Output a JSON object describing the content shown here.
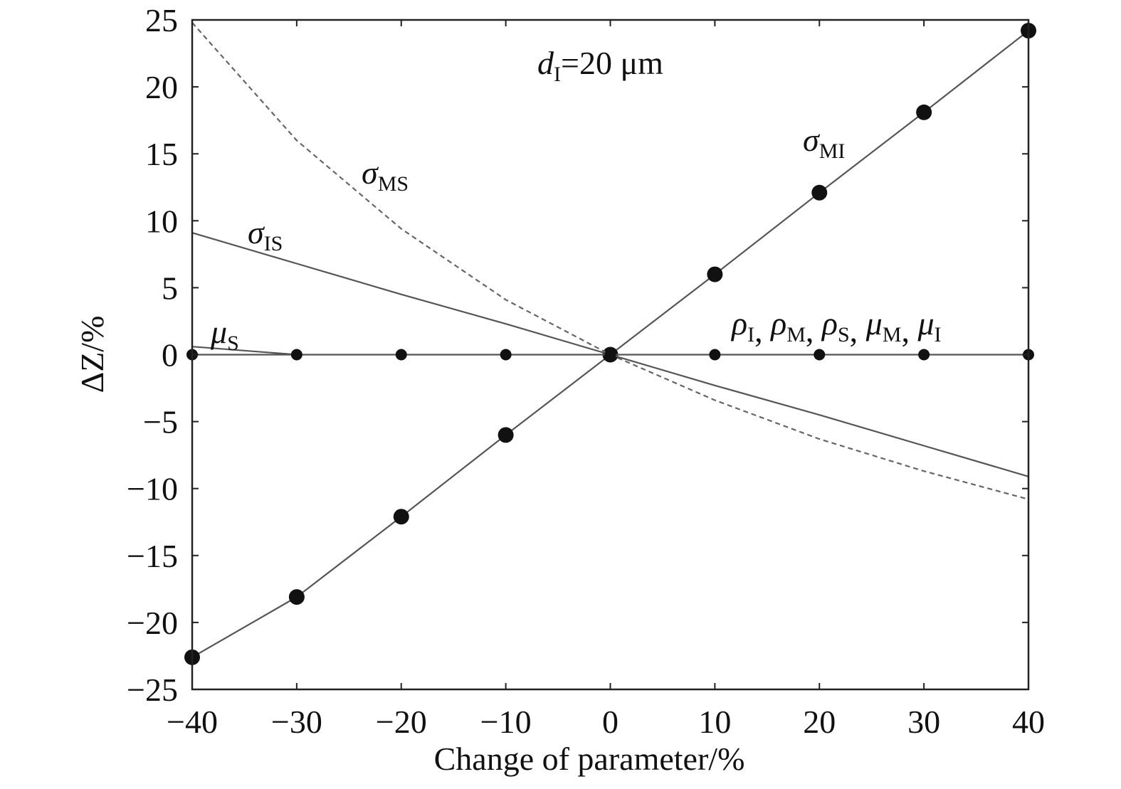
{
  "chart_data": {
    "type": "line",
    "xlabel": "Change of parameter/%",
    "ylabel": "ΔZ/%",
    "xlim": [
      -40,
      40
    ],
    "ylim": [
      -25,
      25
    ],
    "xticks": [
      -40,
      -30,
      -20,
      -10,
      0,
      10,
      20,
      30,
      40
    ],
    "yticks": [
      -25,
      -20,
      -15,
      -10,
      -5,
      0,
      5,
      10,
      15,
      20,
      25
    ],
    "xtick_labels": [
      "−40",
      "−30",
      "−20",
      "−10",
      "0",
      "10",
      "20",
      "30",
      "40"
    ],
    "ytick_labels": [
      "−25",
      "−20",
      "−15",
      "−10",
      "−5",
      "0",
      "5",
      "10",
      "15",
      "20",
      "25"
    ],
    "grid": false,
    "annotations": {
      "condition": {
        "main": "d",
        "sub": "I",
        "rest": "=20 μm"
      },
      "sigma_MI": {
        "main": "σ",
        "sub": "MI"
      },
      "sigma_MS": {
        "main": "σ",
        "sub": "MS"
      },
      "sigma_IS": {
        "main": "σ",
        "sub": "IS"
      },
      "mu_S": {
        "main": "μ",
        "sub": "S"
      },
      "zero_group": {
        "parts": [
          {
            "main": "ρ",
            "sub": "I",
            "sep": ", "
          },
          {
            "main": "ρ",
            "sub": "M",
            "sep": ", "
          },
          {
            "main": "ρ",
            "sub": "S",
            "sep": ", "
          },
          {
            "main": "μ",
            "sub": "M",
            "sep": ", "
          },
          {
            "main": "μ",
            "sub": "I",
            "sep": ""
          }
        ]
      }
    },
    "series": [
      {
        "name": "σMI",
        "style": "solid-markers",
        "x": [
          -40,
          -30,
          -20,
          -10,
          0,
          10,
          20,
          30,
          40
        ],
        "y": [
          -22.6,
          -18.1,
          -12.1,
          -6.0,
          0,
          6.0,
          12.1,
          18.1,
          24.2
        ]
      },
      {
        "name": "σMS",
        "style": "dashed",
        "x": [
          -40,
          -30,
          -20,
          -10,
          0,
          10,
          20,
          30,
          40
        ],
        "y": [
          24.8,
          16.0,
          9.4,
          4.1,
          0,
          -3.4,
          -6.3,
          -8.7,
          -10.8
        ]
      },
      {
        "name": "σIS",
        "style": "solid",
        "x": [
          -40,
          -30,
          -20,
          -10,
          0,
          10,
          20,
          30,
          40
        ],
        "y": [
          9.1,
          6.8,
          4.5,
          2.3,
          0,
          -2.3,
          -4.5,
          -6.8,
          -9.1
        ]
      },
      {
        "name": "μS",
        "style": "solid",
        "x": [
          -40,
          -30
        ],
        "y": [
          0.6,
          0
        ]
      },
      {
        "name": "ρI, ρM, ρS, μM, μI",
        "style": "solid-small-markers",
        "x": [
          -40,
          -30,
          -20,
          -10,
          0,
          10,
          20,
          30,
          40
        ],
        "y": [
          0,
          0,
          0,
          0,
          0,
          0,
          0,
          0,
          0
        ]
      }
    ],
    "colors": {
      "line": "#555555",
      "marker": "#111111",
      "axis": "#222222"
    }
  }
}
